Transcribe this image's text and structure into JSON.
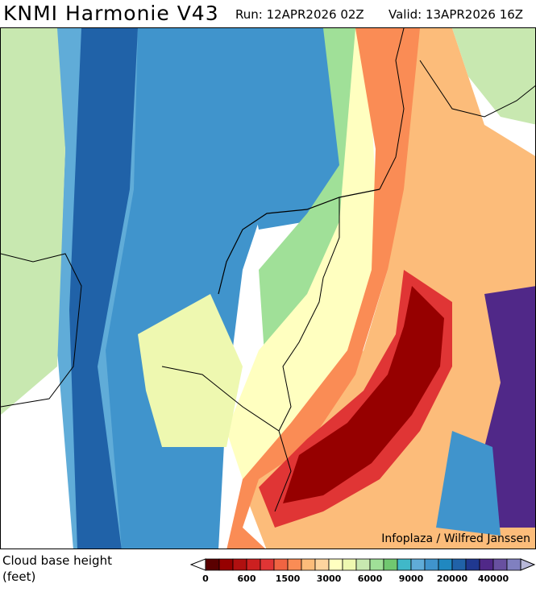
{
  "header": {
    "title": "KNMI Harmonie V43",
    "run": "Run: 12APR2026 02Z",
    "valid": "Valid: 13APR2026 16Z"
  },
  "map": {
    "credit": "Infoplaza / Wilfred Janssen"
  },
  "legend": {
    "variable": "Cloud base height",
    "unit": "(feet)",
    "colors": [
      "#5a0000",
      "#960000",
      "#b01010",
      "#cc2020",
      "#e03535",
      "#f06442",
      "#fa8c55",
      "#fcbc7a",
      "#fdd49e",
      "#ffffc0",
      "#eef8b0",
      "#c8e8b0",
      "#a0e098",
      "#70c870",
      "#40b8c8",
      "#60acd8",
      "#4094cc",
      "#2088c0",
      "#2062a8",
      "#203890",
      "#502888",
      "#6850a0",
      "#8080c0"
    ],
    "over_color": "#b8b8d8",
    "under_color": "#ffffff",
    "labels": [
      "0",
      "600",
      "1500",
      "3000",
      "6000",
      "9000",
      "20000",
      "40000"
    ]
  }
}
